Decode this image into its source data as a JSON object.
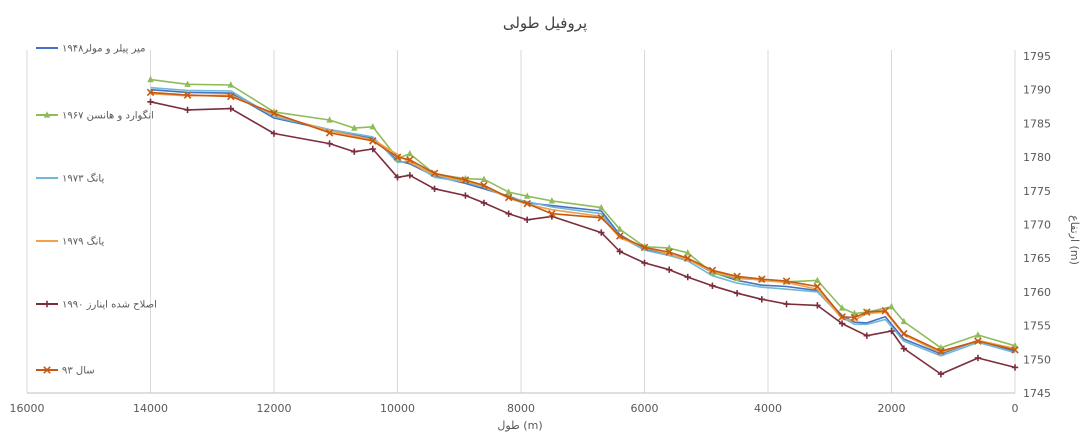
{
  "chart_data": {
    "type": "line",
    "title": "پروفیل طولی",
    "xlabel": "طول (m)",
    "ylabel": "ارتفاع (m)",
    "xlim": [
      0,
      16000
    ],
    "ylim": [
      1745,
      1795
    ],
    "x_reversed": true,
    "y_axis_side": "right",
    "x_ticks": [
      16000,
      14000,
      12000,
      10000,
      8000,
      6000,
      4000,
      2000,
      0
    ],
    "y_ticks": [
      1745,
      1750,
      1755,
      1760,
      1765,
      1770,
      1775,
      1780,
      1785,
      1790,
      1795
    ],
    "grid": "vertical",
    "legend_position": "left",
    "series": [
      {
        "name": "میر پیلر و مولر۱۹۴۸",
        "color": "#4472c4",
        "marker": "none",
        "x": [
          14000,
          13400,
          12700,
          12000,
          11100,
          10400,
          10000,
          9800,
          9400,
          8900,
          8600,
          8200,
          7900,
          7500,
          6700,
          6400,
          6000,
          5600,
          5300,
          4900,
          4500,
          4100,
          3700,
          3200,
          2800,
          2600,
          2400,
          2100,
          1800,
          1200,
          600,
          0
        ],
        "y": [
          1790.0,
          1789.6,
          1789.5,
          1785.8,
          1784.0,
          1782.8,
          1779.5,
          1779.0,
          1777.2,
          1776.1,
          1775.3,
          1774.2,
          1773.2,
          1772.8,
          1772.0,
          1768.5,
          1766.3,
          1765.5,
          1764.9,
          1762.9,
          1761.7,
          1761.0,
          1760.8,
          1760.2,
          1756.5,
          1755.5,
          1755.4,
          1756.3,
          1753.0,
          1750.8,
          1752.8,
          1751.2
        ]
      },
      {
        "name": "انگوارد و هانسن ۱۹۶۷",
        "color": "#8fbc5a",
        "marker": "triangle",
        "x": [
          14000,
          13400,
          12700,
          12000,
          11100,
          10700,
          10400,
          10000,
          9800,
          9400,
          8900,
          8600,
          8200,
          7900,
          7500,
          6700,
          6400,
          6000,
          5600,
          5300,
          4900,
          4500,
          4100,
          3700,
          3200,
          2800,
          2600,
          2400,
          2000,
          1800,
          1200,
          600,
          0
        ],
        "y": [
          1791.5,
          1790.8,
          1790.7,
          1786.7,
          1785.5,
          1784.3,
          1784.5,
          1779.8,
          1780.5,
          1777.5,
          1776.8,
          1776.7,
          1774.8,
          1774.2,
          1773.5,
          1772.5,
          1769.3,
          1766.7,
          1766.5,
          1765.8,
          1762.8,
          1762.0,
          1761.8,
          1761.5,
          1761.7,
          1757.6,
          1756.8,
          1757.0,
          1757.8,
          1755.6,
          1751.7,
          1753.6,
          1752.0
        ]
      },
      {
        "name": "یانگ ۱۹۷۳",
        "color": "#70b8d6",
        "marker": "none",
        "x": [
          14000,
          13400,
          12700,
          12000,
          11100,
          10400,
          10000,
          9800,
          9400,
          8900,
          8600,
          8200,
          7900,
          7500,
          6700,
          6400,
          6000,
          5600,
          5300,
          4900,
          4500,
          4100,
          3700,
          3200,
          2800,
          2600,
          2400,
          2100,
          1800,
          1200,
          600,
          0
        ],
        "y": [
          1790.3,
          1789.9,
          1789.8,
          1786.0,
          1784.1,
          1783.0,
          1779.2,
          1779.4,
          1777.0,
          1776.3,
          1775.5,
          1774.0,
          1773.4,
          1772.6,
          1771.6,
          1768.2,
          1766.2,
          1765.4,
          1764.6,
          1762.4,
          1761.3,
          1760.7,
          1760.4,
          1760.0,
          1756.2,
          1755.2,
          1755.2,
          1755.9,
          1752.7,
          1750.5,
          1752.5,
          1751.0
        ]
      },
      {
        "name": "یانگ ۱۹۷۹",
        "color": "#f2a04a",
        "marker": "none",
        "x": [
          14000,
          13400,
          12700,
          12000,
          11100,
          10400,
          10000,
          9800,
          9400,
          8900,
          8600,
          8200,
          7900,
          7500,
          6700,
          6400,
          6000,
          5600,
          5300,
          4900,
          4500,
          4100,
          3700,
          3200,
          2800,
          2600,
          2400,
          2100,
          1800,
          1200,
          600,
          0
        ],
        "y": [
          1789.4,
          1789.1,
          1789.2,
          1786.3,
          1783.9,
          1782.6,
          1780.4,
          1779.2,
          1777.4,
          1776.4,
          1775.7,
          1773.9,
          1773.0,
          1772.2,
          1771.2,
          1768.0,
          1766.6,
          1765.6,
          1764.8,
          1763.0,
          1762.2,
          1761.7,
          1761.4,
          1760.4,
          1756.0,
          1755.8,
          1756.8,
          1757.0,
          1753.6,
          1751.0,
          1752.8,
          1751.6
        ]
      },
      {
        "name": "اصلاح شده اینارز ۱۹۹۰",
        "color": "#7b2d3c",
        "marker": "plus",
        "x": [
          14000,
          13400,
          12700,
          12000,
          11100,
          10700,
          10400,
          10000,
          9800,
          9400,
          8900,
          8600,
          8200,
          7900,
          7500,
          6700,
          6400,
          6000,
          5600,
          5300,
          4900,
          4500,
          4100,
          3700,
          3200,
          2800,
          2400,
          2000,
          1800,
          1200,
          600,
          0
        ],
        "y": [
          1788.2,
          1787.0,
          1787.2,
          1783.5,
          1782.0,
          1780.8,
          1781.2,
          1777.0,
          1777.3,
          1775.3,
          1774.3,
          1773.2,
          1771.6,
          1770.7,
          1771.2,
          1768.8,
          1766.0,
          1764.3,
          1763.3,
          1762.2,
          1760.9,
          1759.8,
          1758.9,
          1758.2,
          1758.0,
          1755.3,
          1753.5,
          1754.2,
          1751.6,
          1747.8,
          1750.2,
          1748.8
        ]
      },
      {
        "name": "سال ۹۳",
        "color": "#c55a11",
        "marker": "x",
        "x": [
          14000,
          13400,
          12700,
          12000,
          11100,
          10400,
          10000,
          9800,
          9400,
          8900,
          8600,
          8200,
          7900,
          7500,
          6700,
          6400,
          6000,
          5600,
          5300,
          4900,
          4500,
          4100,
          3700,
          3200,
          2800,
          2600,
          2400,
          2100,
          1800,
          1200,
          600,
          0
        ],
        "y": [
          1789.6,
          1789.2,
          1789.0,
          1786.5,
          1783.6,
          1782.4,
          1780.0,
          1779.6,
          1777.6,
          1776.6,
          1775.8,
          1774.0,
          1773.1,
          1771.6,
          1771.0,
          1768.3,
          1766.6,
          1765.9,
          1765.0,
          1763.2,
          1762.3,
          1761.9,
          1761.6,
          1760.8,
          1756.3,
          1756.2,
          1757.0,
          1757.2,
          1753.8,
          1751.2,
          1752.7,
          1751.4
        ]
      }
    ]
  }
}
